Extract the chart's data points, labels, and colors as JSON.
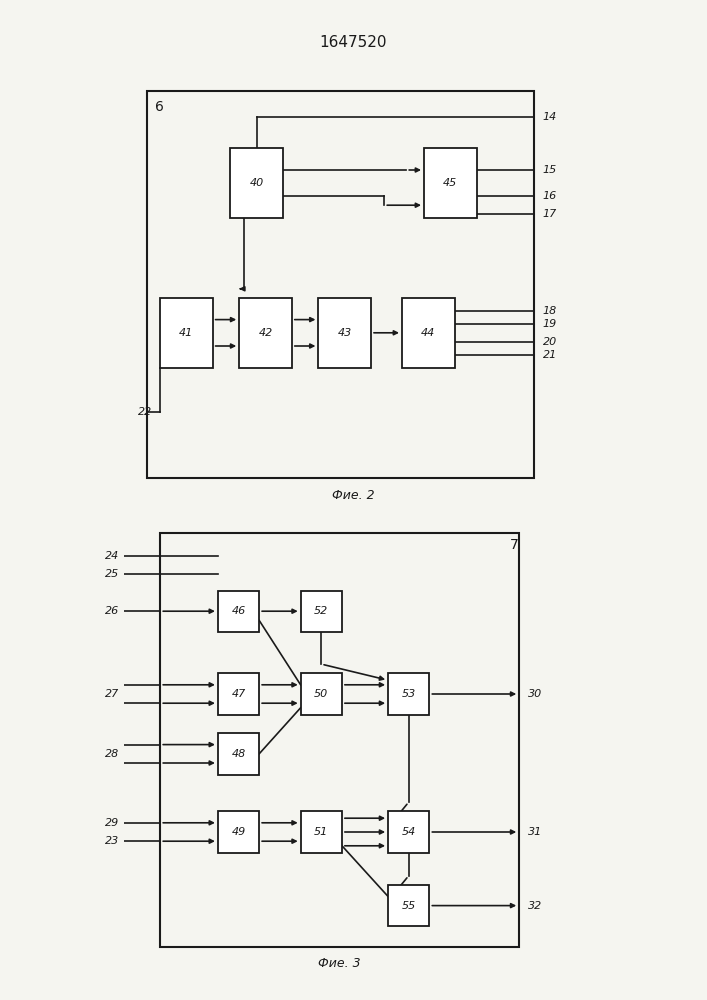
{
  "title": "1647520",
  "fig1_caption": "Фие. 2",
  "fig2_caption": "Фие. 3",
  "bg_color": "#f5f5f0",
  "box_color": "#ffffff",
  "line_color": "#1a1a1a",
  "text_color": "#1a1a1a"
}
